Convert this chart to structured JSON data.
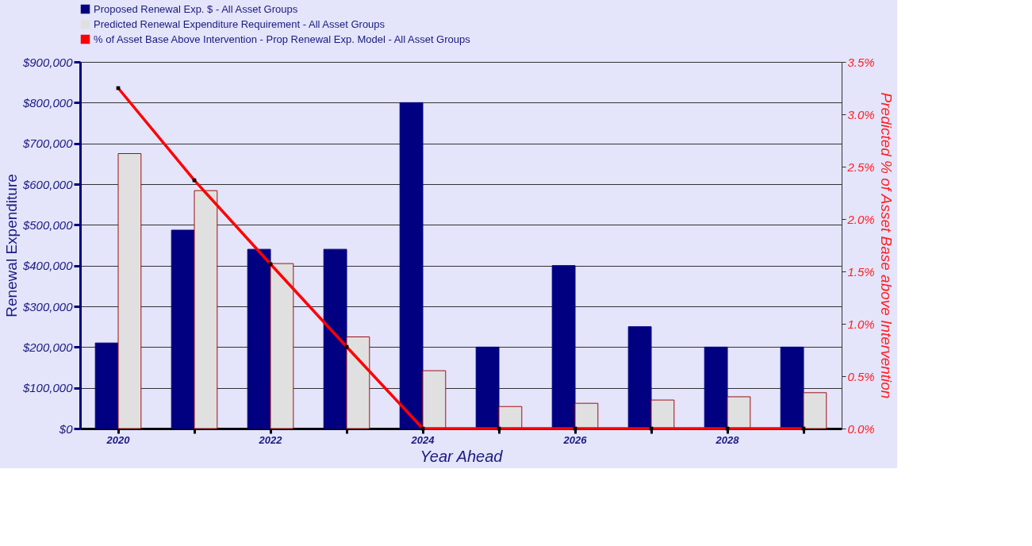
{
  "chart_data": {
    "type": "bar",
    "xlabel": "Year Ahead",
    "ylabel": "Renewal Expenditure",
    "y2label": "Predicted % of Asset Base above Intervention",
    "categories": [
      "2020",
      null,
      "2022",
      null,
      "2024",
      null,
      "2026",
      null,
      "2028",
      null
    ],
    "series": [
      {
        "name": "Proposed Renewal Exp. $ -  All Asset Groups",
        "color": "#000080",
        "values": [
          210000,
          487000,
          440000,
          440000,
          800000,
          200000,
          400000,
          250000,
          200000,
          200000
        ]
      },
      {
        "name": "Predicted Renewal Expenditure Requirement -  All Asset Groups",
        "color": "#e0e0e0",
        "values": [
          675000,
          584000,
          405000,
          225000,
          142000,
          54000,
          62000,
          70000,
          78000,
          88000
        ]
      },
      {
        "name": "% of Asset Base Above Intervention - Prop Renewal Exp. Model -  All Asset Groups",
        "type": "line",
        "axis": "y2",
        "color": "#ff0000",
        "marker": "square",
        "values": [
          3.25,
          2.37,
          1.57,
          0.78,
          0,
          0,
          0,
          0,
          0,
          0
        ]
      }
    ],
    "ylim": [
      0,
      900000
    ],
    "yticks": [
      {
        "value": 0,
        "label": "$0"
      },
      {
        "value": 100000,
        "label": "$100,000"
      },
      {
        "value": 200000,
        "label": "$200,000"
      },
      {
        "value": 300000,
        "label": "$300,000"
      },
      {
        "value": 400000,
        "label": "$400,000"
      },
      {
        "value": 500000,
        "label": "$500,000"
      },
      {
        "value": 600000,
        "label": "$600,000"
      },
      {
        "value": 700000,
        "label": "$700,000"
      },
      {
        "value": 800000,
        "label": "$800,000"
      },
      {
        "value": 900000,
        "label": "$900,000"
      }
    ],
    "y2lim": [
      0,
      3.5
    ],
    "y2ticks": [
      {
        "value": 0,
        "label": "0.0%"
      },
      {
        "value": 0.5,
        "label": "0.5%"
      },
      {
        "value": 1,
        "label": "1.0%"
      },
      {
        "value": 1.5,
        "label": "1.5%"
      },
      {
        "value": 2,
        "label": "2.0%"
      },
      {
        "value": 2.5,
        "label": "2.5%"
      },
      {
        "value": 3,
        "label": "3.0%"
      },
      {
        "value": 3.5,
        "label": "3.5%"
      }
    ],
    "grid": "y",
    "legend": "top"
  }
}
